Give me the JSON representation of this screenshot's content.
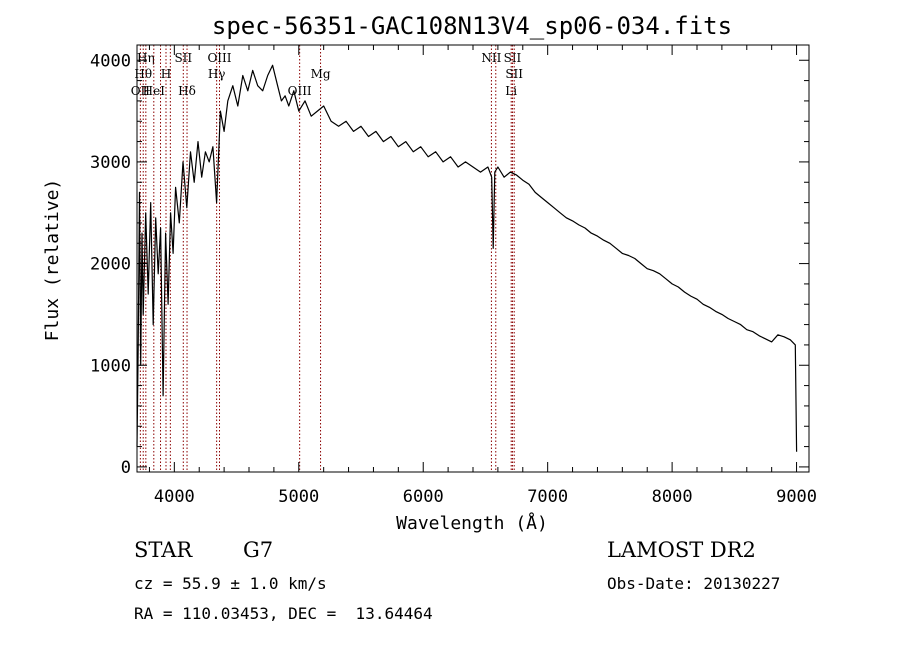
{
  "chart_data": {
    "type": "line",
    "title": "spec-56351-GAC108N13V4_sp06-034.fits",
    "xlabel": "Wavelength (Å)",
    "ylabel": "Flux (relative)",
    "xlim": [
      3700,
      9100
    ],
    "ylim": [
      -50,
      4150
    ],
    "x_ticks": [
      4000,
      5000,
      6000,
      7000,
      8000,
      9000
    ],
    "y_ticks": [
      0,
      1000,
      2000,
      3000,
      4000
    ],
    "x_tick_labels": [
      "4000",
      "5000",
      "6000",
      "7000",
      "8000",
      "9000"
    ],
    "y_tick_labels": [
      "0",
      "1000",
      "2000",
      "3000",
      "4000"
    ],
    "grid": false,
    "series": [
      {
        "x": [
          3700,
          3710,
          3720,
          3730,
          3740,
          3750,
          3770,
          3790,
          3810,
          3830,
          3850,
          3870,
          3890,
          3910,
          3930,
          3950,
          3970,
          3990,
          4010,
          4040,
          4070,
          4100,
          4130,
          4160,
          4190,
          4220,
          4250,
          4280,
          4310,
          4340,
          4370,
          4400,
          4430,
          4470,
          4510,
          4550,
          4590,
          4630,
          4670,
          4710,
          4750,
          4790,
          4830,
          4860,
          4890,
          4920,
          4960,
          5000,
          5050,
          5100,
          5150,
          5200,
          5260,
          5320,
          5380,
          5440,
          5500,
          5560,
          5620,
          5680,
          5740,
          5800,
          5860,
          5920,
          5980,
          6040,
          6100,
          6160,
          6220,
          6280,
          6340,
          6400,
          6460,
          6520,
          6550,
          6562,
          6575,
          6600,
          6650,
          6700,
          6750,
          6800,
          6850,
          6900,
          6950,
          7000,
          7050,
          7100,
          7150,
          7200,
          7250,
          7300,
          7350,
          7400,
          7450,
          7500,
          7550,
          7600,
          7650,
          7700,
          7750,
          7800,
          7850,
          7900,
          7950,
          8000,
          8050,
          8100,
          8150,
          8200,
          8250,
          8300,
          8350,
          8400,
          8450,
          8500,
          8550,
          8600,
          8650,
          8700,
          8750,
          8800,
          8850,
          8900,
          8950,
          8990,
          9000
        ],
        "y": [
          200,
          1200,
          2700,
          1000,
          2300,
          1500,
          2500,
          1700,
          2600,
          1400,
          2450,
          1900,
          2350,
          700,
          2300,
          1600,
          2500,
          2100,
          2750,
          2400,
          3000,
          2550,
          3100,
          2800,
          3200,
          2850,
          3100,
          3000,
          3150,
          2600,
          3500,
          3300,
          3600,
          3750,
          3550,
          3850,
          3700,
          3900,
          3750,
          3700,
          3850,
          3950,
          3750,
          3600,
          3650,
          3550,
          3700,
          3500,
          3600,
          3450,
          3500,
          3550,
          3400,
          3350,
          3400,
          3300,
          3350,
          3250,
          3300,
          3200,
          3250,
          3150,
          3200,
          3100,
          3150,
          3050,
          3100,
          3000,
          3050,
          2950,
          3000,
          2950,
          2900,
          2950,
          2850,
          2150,
          2900,
          2950,
          2850,
          2900,
          2870,
          2820,
          2780,
          2700,
          2650,
          2600,
          2550,
          2500,
          2450,
          2420,
          2380,
          2350,
          2300,
          2270,
          2230,
          2200,
          2150,
          2100,
          2080,
          2050,
          2000,
          1950,
          1930,
          1900,
          1850,
          1800,
          1770,
          1720,
          1680,
          1650,
          1600,
          1570,
          1530,
          1500,
          1460,
          1430,
          1400,
          1350,
          1330,
          1290,
          1260,
          1230,
          1300,
          1280,
          1250,
          1200,
          150
        ]
      }
    ],
    "emission_lines": [
      {
        "x": 3727,
        "label": "OII",
        "row": 3
      },
      {
        "x": 3750,
        "label": "Hθ",
        "row": 2
      },
      {
        "x": 3771,
        "label": "Hη",
        "row": 1
      },
      {
        "x": 3835,
        "label": "HeI",
        "row": 3
      },
      {
        "x": 3889,
        "label": "",
        "row": 0
      },
      {
        "x": 3933,
        "label": "H",
        "row": 2
      },
      {
        "x": 3968,
        "label": "",
        "row": 0
      },
      {
        "x": 4072,
        "label": "SII",
        "row": 1
      },
      {
        "x": 4102,
        "label": "Hδ",
        "row": 3
      },
      {
        "x": 4340,
        "label": "Hγ",
        "row": 2
      },
      {
        "x": 4363,
        "label": "OIII",
        "row": 1
      },
      {
        "x": 5007,
        "label": "OIII",
        "row": 3
      },
      {
        "x": 5175,
        "label": "Mg",
        "row": 2
      },
      {
        "x": 6548,
        "label": "NII",
        "row": 1
      },
      {
        "x": 6583,
        "label": "",
        "row": 0
      },
      {
        "x": 6707,
        "label": "Li",
        "row": 3
      },
      {
        "x": 6717,
        "label": "SII",
        "row": 1
      },
      {
        "x": 6731,
        "label": "SII",
        "row": 2
      }
    ]
  },
  "info": {
    "object_class": "STAR",
    "subclass": "G7",
    "cz": "cz = 55.9 ± 1.0 km/s",
    "coords": "RA = 110.03453, DEC =  13.64464",
    "survey": "LAMOST DR2",
    "obs_date": "Obs-Date: 20130227"
  },
  "colors": {
    "line": "#000000",
    "marker_lines": "#8b0000"
  }
}
